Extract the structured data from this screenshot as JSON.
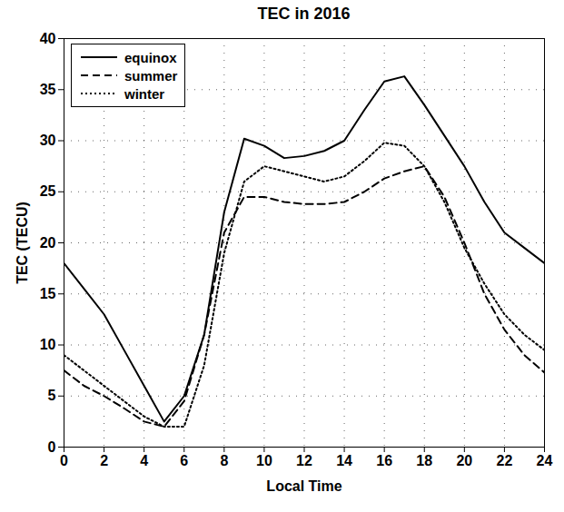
{
  "chart_data": {
    "type": "line",
    "title": "TEC in 2016",
    "x_label": "Local Time",
    "y_label": "TEC (TECU)",
    "x": [
      0,
      1,
      2,
      3,
      4,
      5,
      6,
      7,
      8,
      9,
      10,
      11,
      12,
      13,
      14,
      15,
      16,
      17,
      18,
      19,
      20,
      21,
      22,
      23,
      24
    ],
    "series": [
      {
        "name": "equinox",
        "color": "#000000",
        "line_style": "solid",
        "values": [
          18,
          15.5,
          13,
          9.5,
          6,
          2.5,
          5,
          11,
          23,
          30.2,
          29.5,
          28.3,
          28.5,
          29,
          30,
          33,
          35.8,
          36.3,
          33.5,
          30.5,
          27.5,
          24,
          21,
          19.5,
          18
        ]
      },
      {
        "name": "summer",
        "color": "#000000",
        "line_style": "dashed",
        "values": [
          7.5,
          6,
          5,
          3.8,
          2.5,
          2,
          4.5,
          11,
          21,
          24.5,
          24.5,
          24,
          23.8,
          23.8,
          24,
          25,
          26.3,
          27,
          27.5,
          24.5,
          20,
          15,
          11.5,
          9,
          7.3
        ]
      },
      {
        "name": "winter",
        "color": "#000000",
        "line_style": "dotted",
        "values": [
          9,
          7.5,
          6,
          4.5,
          3,
          2,
          2,
          8,
          19,
          26,
          27.5,
          27,
          26.5,
          26,
          26.5,
          28,
          29.8,
          29.5,
          27.5,
          24,
          19.5,
          16,
          13,
          11,
          9.5
        ]
      }
    ],
    "xlim": [
      0,
      24
    ],
    "xticks": [
      0,
      2,
      4,
      6,
      8,
      10,
      12,
      14,
      16,
      18,
      20,
      22,
      24
    ],
    "ylim": [
      0,
      40
    ],
    "yticks": [
      0,
      5,
      10,
      15,
      20,
      25,
      30,
      35,
      40
    ],
    "grid": true,
    "legend": "upper left"
  }
}
